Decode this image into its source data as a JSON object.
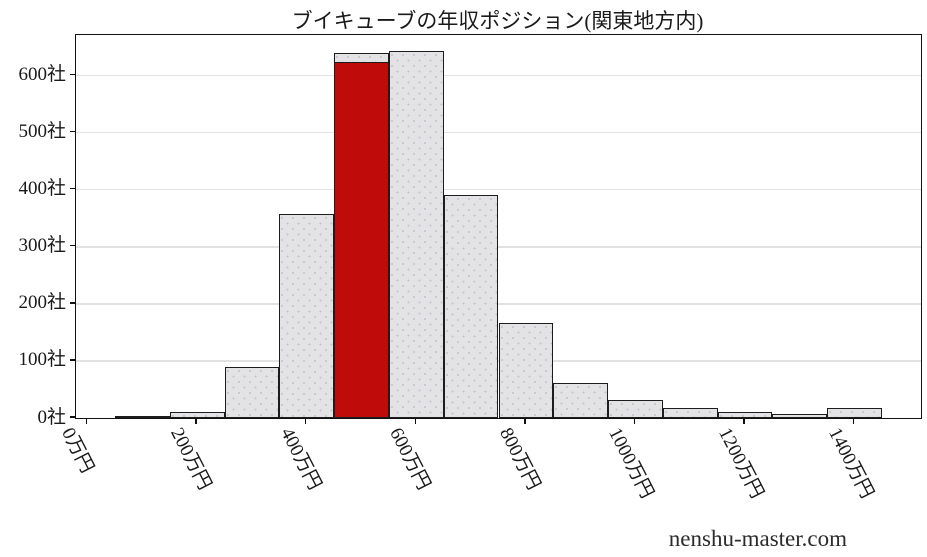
{
  "chart_data": {
    "type": "bar",
    "title": "ブイキューブの年収ポジション(関東地方内)",
    "xlabel": "",
    "ylabel": "",
    "watermark": "nenshu-master.com",
    "bin_centers": [
      100,
      200,
      300,
      400,
      500,
      600,
      700,
      800,
      900,
      1000,
      1100,
      1200,
      1300,
      1400
    ],
    "bin_width": 100,
    "values": [
      3,
      10,
      90,
      358,
      640,
      643,
      390,
      167,
      62,
      32,
      17,
      10,
      7,
      17
    ],
    "highlight": {
      "bin_center": 500,
      "value": 624,
      "meaning": "company-position-bin"
    },
    "x_tick_values": [
      0,
      200,
      400,
      600,
      800,
      1000,
      1200,
      1400
    ],
    "x_tick_labels": [
      "0万円",
      "200万円",
      "400万円",
      "600万円",
      "800万円",
      "1000万円",
      "1200万円",
      "1400万円"
    ],
    "y_tick_values": [
      0,
      100,
      200,
      300,
      400,
      500,
      600
    ],
    "y_tick_labels": [
      "0社",
      "100社",
      "200社",
      "300社",
      "400社",
      "500社",
      "600社"
    ],
    "xlim": [
      -21,
      1521
    ],
    "ylim": [
      0,
      671
    ],
    "grid": "horizontal-only",
    "legend": "none",
    "colors": {
      "bar_fill": "#e3e3e5",
      "bar_dots": "#c5c5ca",
      "bar_border": "#1c1c1c",
      "highlight_fill": "#c00b0b",
      "gridline": "#e2e2e2",
      "axis": "#111111",
      "text": "#1a1a1a",
      "watermark_text": "#2b2b2b"
    }
  }
}
